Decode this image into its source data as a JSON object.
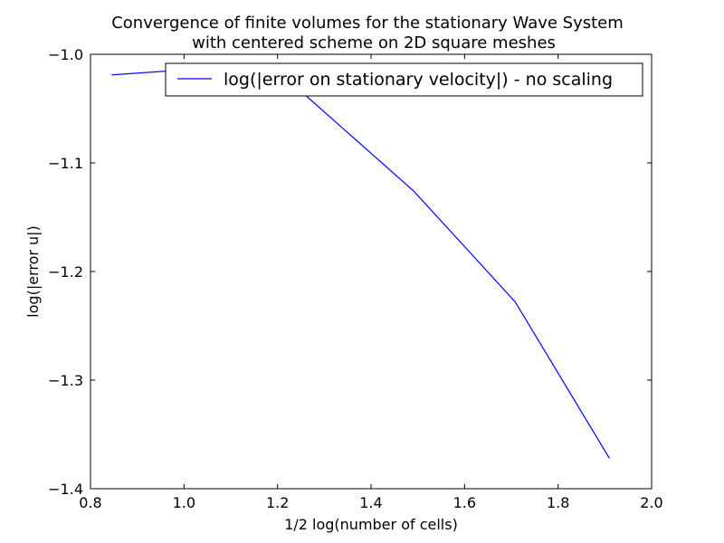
{
  "chart_data": {
    "type": "line",
    "title_line1": "Convergence of finite volumes for the stationary Wave System",
    "title_line2": "with centered scheme on 2D square meshes",
    "xlabel": "1/2 log(number of cells)",
    "ylabel": "log(|error u|)",
    "xlim": [
      0.8,
      2.0
    ],
    "ylim": [
      -1.4,
      -1.0
    ],
    "x_ticks": [
      0.8,
      1.0,
      1.2,
      1.4,
      1.6,
      1.8,
      2.0
    ],
    "x_tick_labels": [
      "0.8",
      "1.0",
      "1.2",
      "1.4",
      "1.6",
      "1.8",
      "2.0"
    ],
    "y_ticks": [
      -1.0,
      -1.1,
      -1.2,
      -1.3,
      -1.4
    ],
    "y_tick_labels": [
      "−1.0",
      "−1.1",
      "−1.2",
      "−1.3",
      "−1.4"
    ],
    "grid": false,
    "legend_position": "top-right",
    "series": [
      {
        "name": "log(|error on stationary velocity|) - no scaling",
        "color": "#0000ff",
        "x": [
          0.845,
          1.147,
          1.25,
          1.4914,
          1.7083,
          1.9098
        ],
        "y": [
          -1.019,
          -1.01,
          -1.034,
          -1.126,
          -1.228,
          -1.372
        ]
      }
    ]
  }
}
